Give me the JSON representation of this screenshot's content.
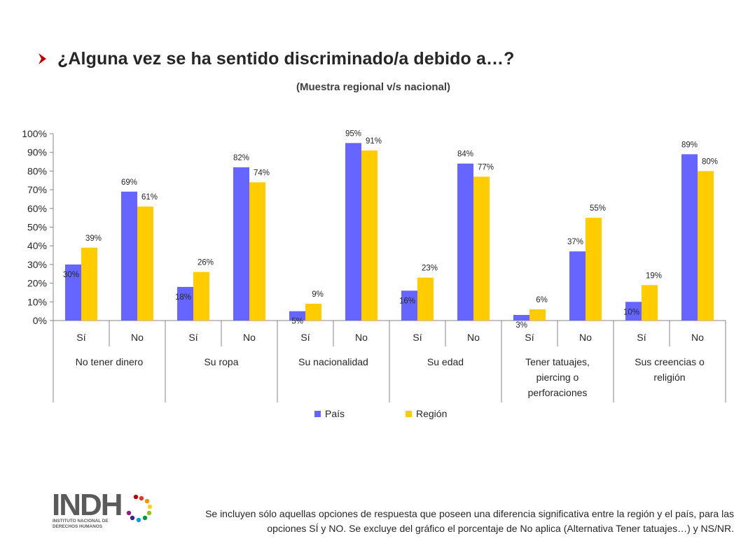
{
  "title": "¿Alguna vez se ha sentido discriminado/a debido a…?",
  "subtitle": "(Muestra regional v/s nacional)",
  "chart_data": {
    "type": "bar",
    "groups": [
      "No tener dinero",
      "Su ropa",
      "Su nacionalidad",
      "Su edad",
      "Tener tatuajes, piercing o perforaciones",
      "Sus creencias o religión"
    ],
    "categories": [
      "Sí",
      "No",
      "Sí",
      "No",
      "Sí",
      "No",
      "Sí",
      "No",
      "Sí",
      "No",
      "Sí",
      "No"
    ],
    "series": [
      {
        "name": "País",
        "color": "#6666ff",
        "values": [
          30,
          69,
          18,
          82,
          5,
          95,
          16,
          84,
          3,
          37,
          10,
          89
        ]
      },
      {
        "name": "Región",
        "color": "#ffcc00",
        "values": [
          39,
          61,
          26,
          74,
          9,
          91,
          23,
          77,
          6,
          55,
          19,
          80
        ]
      }
    ],
    "y_ticks": [
      "0%",
      "10%",
      "20%",
      "30%",
      "40%",
      "50%",
      "60%",
      "70%",
      "80%",
      "90%",
      "100%"
    ],
    "ylim": [
      0,
      100
    ],
    "value_suffix": "%",
    "legend_position": "bottom",
    "grid": false
  },
  "logo": {
    "text": "INDH",
    "tagline_1": "INSTITUTO NACIONAL DE",
    "tagline_2": "DERECHOS HUMANOS"
  },
  "footnote": "Se incluyen sólo aquellas opciones de respuesta que poseen una diferencia significativa entre la región y el país, para las opciones SÍ y NO. Se excluye del gráfico el porcentaje de No aplica  (Alternativa Tener tatuajes…) y NS/NR.",
  "colors": {
    "accent_bullet": "#c00000",
    "logo_red": "#c00000",
    "logo_gray": "#5a5a5a"
  }
}
